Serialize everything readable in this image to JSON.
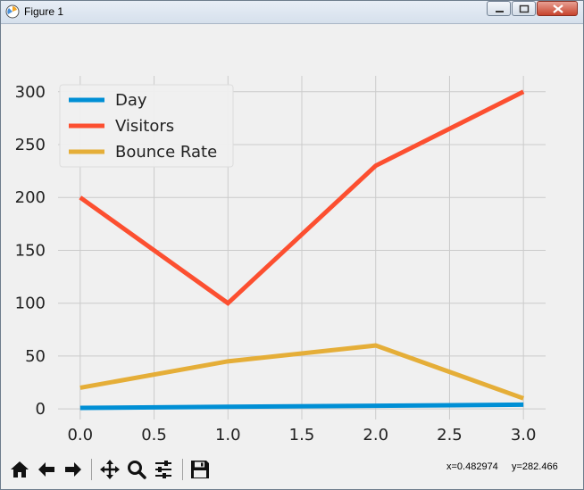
{
  "window": {
    "title": "Figure 1",
    "icons": [
      "app-icon",
      "minimize-icon",
      "maximize-icon",
      "close-icon"
    ]
  },
  "toolbar": {
    "buttons": [
      "home-icon",
      "back-arrow-icon",
      "forward-arrow-icon",
      "pan-icon",
      "zoom-icon",
      "configure-subplots-icon",
      "save-icon"
    ],
    "coord_x": "x=0.482974",
    "coord_y": "y=282.466"
  },
  "chart_data": {
    "type": "line",
    "x": [
      0,
      1,
      2,
      3
    ],
    "series": [
      {
        "name": "Day",
        "values": [
          1,
          2,
          3,
          4
        ],
        "color": "#008fd5"
      },
      {
        "name": "Visitors",
        "values": [
          200,
          100,
          230,
          300
        ],
        "color": "#fc4f30"
      },
      {
        "name": "Bounce Rate",
        "values": [
          20,
          45,
          60,
          10
        ],
        "color": "#e5ae38"
      }
    ],
    "xlim": [
      -0.15,
      3.15
    ],
    "ylim": [
      -10,
      315
    ],
    "x_ticks": [
      "0.0",
      "0.5",
      "1.0",
      "1.5",
      "2.0",
      "2.5",
      "3.0"
    ],
    "y_ticks": [
      "0",
      "50",
      "100",
      "150",
      "200",
      "250",
      "300"
    ],
    "grid": true,
    "legend": "top-left",
    "background": "#f0f0f0",
    "grid_color": "#cbcbcb"
  }
}
